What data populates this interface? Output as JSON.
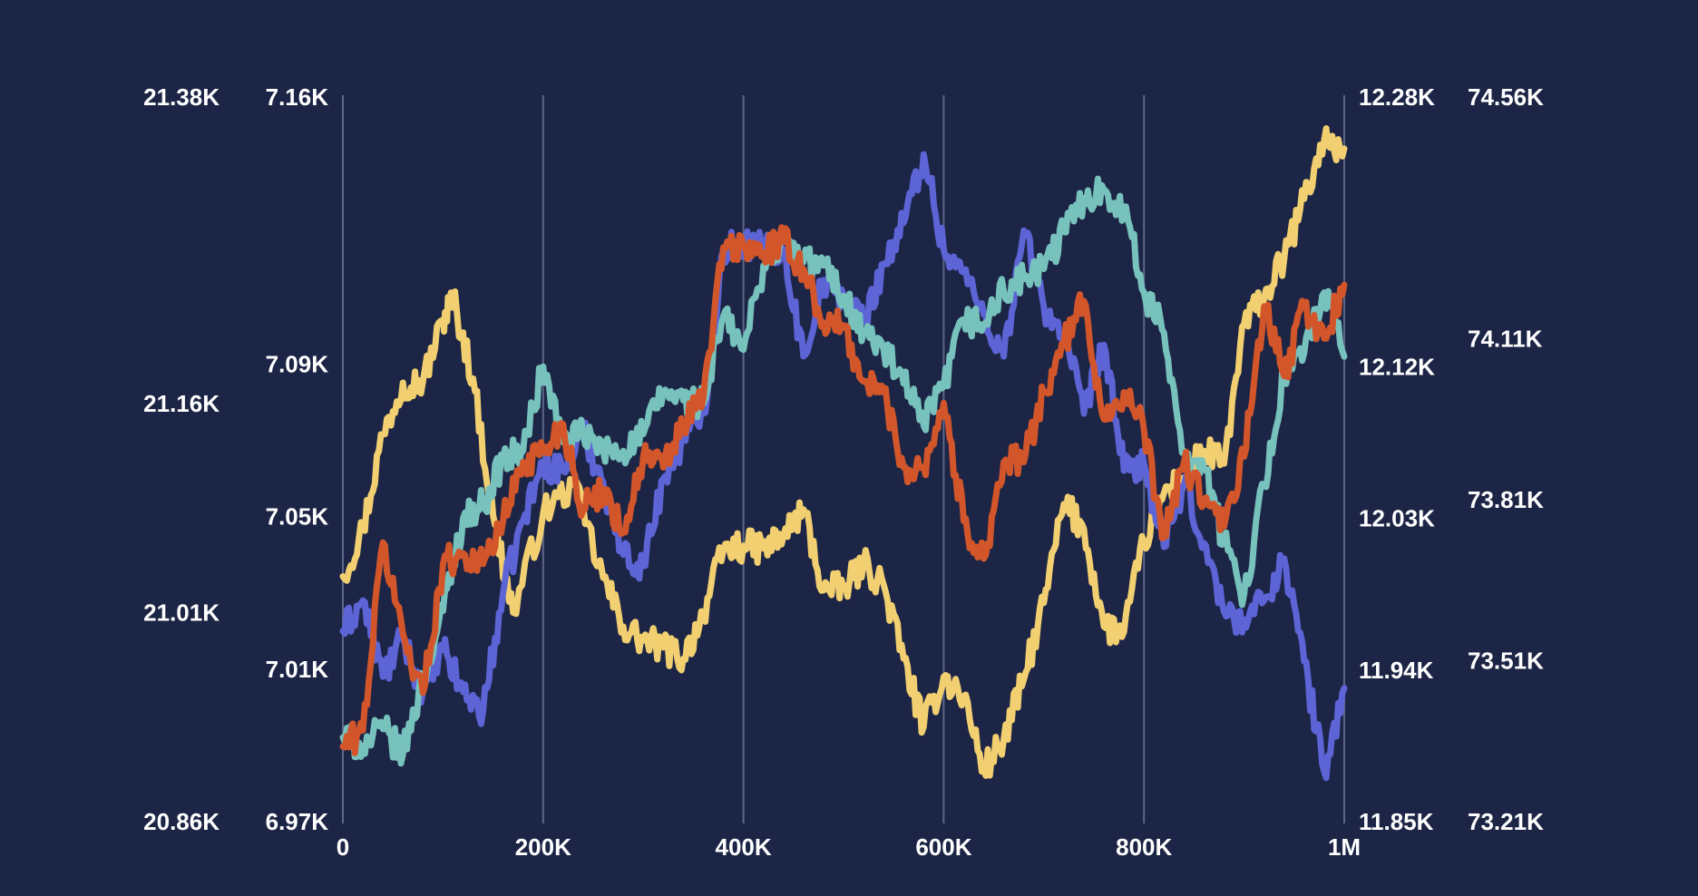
{
  "chart_data": {
    "type": "line",
    "title": "",
    "xlabel": "",
    "ylabel": "",
    "grid": "vertical",
    "legend": "none",
    "background": "#1c2545",
    "x_range": [
      0,
      1000000
    ],
    "x_ticks": [
      {
        "value": 0,
        "label": "0"
      },
      {
        "value": 200000,
        "label": "200K"
      },
      {
        "value": 400000,
        "label": "400K"
      },
      {
        "value": 600000,
        "label": "600K"
      },
      {
        "value": 800000,
        "label": "800K"
      },
      {
        "value": 1000000,
        "label": "1M"
      }
    ],
    "axes": [
      {
        "id": "left_outer",
        "side": "left",
        "range": [
          20860,
          21380
        ],
        "ticks": [
          {
            "value": 20860,
            "label": "20.86K"
          },
          {
            "value": 21010,
            "label": "21.01K"
          },
          {
            "value": 21160,
            "label": "21.16K"
          },
          {
            "value": 21380,
            "label": "21.38K"
          }
        ]
      },
      {
        "id": "left_inner",
        "side": "left",
        "range": [
          6970,
          7160
        ],
        "ticks": [
          {
            "value": 6970,
            "label": "6.97K"
          },
          {
            "value": 7010,
            "label": "7.01K"
          },
          {
            "value": 7050,
            "label": "7.05K"
          },
          {
            "value": 7090,
            "label": "7.09K"
          },
          {
            "value": 7160,
            "label": "7.16K"
          }
        ]
      },
      {
        "id": "right_inner",
        "side": "right",
        "range": [
          11850,
          12280
        ],
        "ticks": [
          {
            "value": 11850,
            "label": "11.85K"
          },
          {
            "value": 11940,
            "label": "11.94K"
          },
          {
            "value": 12030,
            "label": "12.03K"
          },
          {
            "value": 12120,
            "label": "12.12K"
          },
          {
            "value": 12280,
            "label": "12.28K"
          }
        ]
      },
      {
        "id": "right_outer",
        "side": "right",
        "range": [
          73210,
          74560
        ],
        "ticks": [
          {
            "value": 73210,
            "label": "73.21K"
          },
          {
            "value": 73510,
            "label": "73.51K"
          },
          {
            "value": 73810,
            "label": "73.81K"
          },
          {
            "value": 74110,
            "label": "74.11K"
          },
          {
            "value": 74560,
            "label": "74.56K"
          }
        ]
      }
    ],
    "series": [
      {
        "axis": "left_outer",
        "color": "#f2cf70",
        "x": [
          0,
          20000,
          40000,
          60000,
          80000,
          100000,
          110000,
          130000,
          150000,
          170000,
          200000,
          230000,
          260000,
          280000,
          300000,
          320000,
          340000,
          360000,
          380000,
          400000,
          420000,
          440000,
          460000,
          480000,
          500000,
          520000,
          540000,
          560000,
          580000,
          600000,
          620000,
          640000,
          660000,
          680000,
          700000,
          720000,
          740000,
          760000,
          780000,
          800000,
          820000,
          840000,
          860000,
          880000,
          900000,
          920000,
          940000,
          960000,
          980000,
          1000000
        ],
        "y": [
          21036,
          21070,
          21138,
          21175,
          21176,
          21220,
          21236,
          21178,
          21080,
          21010,
          21081,
          21102,
          21035,
          21000,
          20990,
          20985,
          20977,
          21010,
          21055,
          21058,
          21056,
          21065,
          21084,
          21026,
          21027,
          21045,
          21030,
          20977,
          20928,
          20964,
          20950,
          20897,
          20919,
          20962,
          21017,
          21088,
          21070,
          21000,
          20996,
          21061,
          21096,
          21107,
          21126,
          21117,
          21217,
          21236,
          21264,
          21307,
          21349,
          21343
        ]
      },
      {
        "axis": "left_inner",
        "color": "#5c64d6",
        "x": [
          0,
          20000,
          40000,
          60000,
          80000,
          100000,
          120000,
          140000,
          160000,
          180000,
          200000,
          220000,
          240000,
          260000,
          280000,
          300000,
          320000,
          340000,
          360000,
          380000,
          400000,
          420000,
          440000,
          460000,
          480000,
          500000,
          520000,
          540000,
          560000,
          580000,
          600000,
          620000,
          640000,
          660000,
          680000,
          700000,
          720000,
          740000,
          760000,
          780000,
          800000,
          820000,
          840000,
          860000,
          880000,
          900000,
          920000,
          940000,
          960000,
          980000,
          1000000
        ],
        "y": [
          7020,
          7028,
          7008,
          7018,
          7004,
          7015,
          7004,
          6999,
          7030,
          7049,
          7064,
          7062,
          7072,
          7059,
          7040,
          7037,
          7060,
          7070,
          7077,
          7120,
          7122,
          7120,
          7120,
          7092,
          7112,
          7108,
          7101,
          7116,
          7127,
          7145,
          7120,
          7114,
          7103,
          7092,
          7125,
          7105,
          7098,
          7077,
          7095,
          7062,
          7064,
          7042,
          7058,
          7043,
          7025,
          7023,
          7028,
          7039,
          7012,
          6983,
          7005
        ]
      },
      {
        "axis": "right_inner",
        "color": "#77c2bc",
        "x": [
          0,
          20000,
          40000,
          60000,
          80000,
          100000,
          120000,
          140000,
          160000,
          180000,
          200000,
          220000,
          240000,
          260000,
          280000,
          300000,
          320000,
          340000,
          360000,
          380000,
          400000,
          420000,
          440000,
          460000,
          480000,
          500000,
          520000,
          540000,
          560000,
          580000,
          600000,
          620000,
          640000,
          660000,
          680000,
          700000,
          720000,
          740000,
          760000,
          780000,
          800000,
          820000,
          840000,
          860000,
          880000,
          900000,
          920000,
          940000,
          960000,
          980000,
          1000000
        ],
        "y": [
          11900,
          11895,
          11905,
          11890,
          11935,
          11975,
          12030,
          12038,
          12065,
          12070,
          12120,
          12075,
          12080,
          12070,
          12070,
          12080,
          12105,
          12100,
          12098,
          12150,
          12130,
          12180,
          12195,
          12182,
          12180,
          12162,
          12140,
          12130,
          12110,
          12085,
          12108,
          12148,
          12145,
          12165,
          12172,
          12178,
          12200,
          12220,
          12225,
          12215,
          12164,
          12140,
          12070,
          12060,
          12015,
          11985,
          12050,
          12115,
          12128,
          12164,
          12126
        ]
      },
      {
        "axis": "right_outer",
        "color": "#d3562b",
        "x": [
          0,
          20000,
          40000,
          60000,
          80000,
          100000,
          120000,
          140000,
          160000,
          180000,
          200000,
          220000,
          240000,
          260000,
          280000,
          300000,
          320000,
          340000,
          360000,
          380000,
          400000,
          420000,
          440000,
          460000,
          480000,
          500000,
          520000,
          540000,
          560000,
          580000,
          600000,
          620000,
          640000,
          660000,
          680000,
          700000,
          720000,
          740000,
          760000,
          780000,
          800000,
          820000,
          840000,
          860000,
          880000,
          900000,
          920000,
          940000,
          960000,
          980000,
          1000000
        ],
        "y": [
          73350,
          73380,
          73730,
          73560,
          73450,
          73690,
          73710,
          73690,
          73770,
          73880,
          73900,
          73950,
          73790,
          73830,
          73750,
          73890,
          73870,
          73950,
          74000,
          74280,
          74280,
          74270,
          74290,
          74240,
          74140,
          74130,
          74030,
          74010,
          73870,
          73870,
          73990,
          73770,
          73700,
          73880,
          73880,
          74010,
          74100,
          74180,
          73960,
          74010,
          73940,
          73740,
          73880,
          73810,
          73760,
          73890,
          74170,
          74040,
          74170,
          74110,
          74210
        ]
      }
    ]
  }
}
